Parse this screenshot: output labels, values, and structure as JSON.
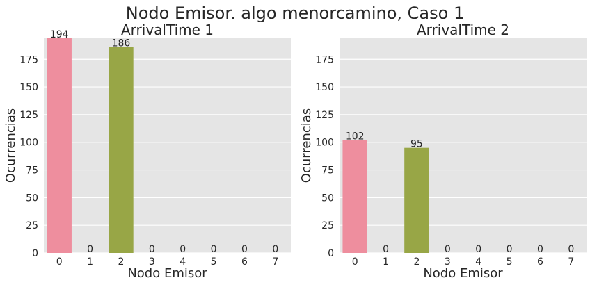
{
  "figure": {
    "suptitle": "Nodo Emisor. algo menorcamino, Caso 1"
  },
  "colors": {
    "panel_background": "#e5e5e5",
    "grid": "#ffffff",
    "palette": [
      "#ee8e9e",
      "#e9a37e",
      "#98a646",
      "#5bb06f",
      "#4fb2a9",
      "#59a9d6",
      "#a99de8",
      "#e887cf"
    ]
  },
  "chart_data": [
    {
      "type": "bar",
      "title": "ArrivalTime 1",
      "xlabel": "Nodo Emisor",
      "ylabel": "Ocurrencias",
      "categories": [
        "0",
        "1",
        "2",
        "3",
        "4",
        "5",
        "6",
        "7"
      ],
      "values": [
        194,
        0,
        186,
        0,
        0,
        0,
        0,
        0
      ],
      "ylim": [
        0,
        194
      ],
      "yticks": [
        0,
        25,
        50,
        75,
        100,
        125,
        150,
        175
      ],
      "grid": true,
      "data_labels": true
    },
    {
      "type": "bar",
      "title": "ArrivalTime 2",
      "xlabel": "Nodo Emisor",
      "ylabel": "Ocurrencias",
      "categories": [
        "0",
        "1",
        "2",
        "3",
        "4",
        "5",
        "6",
        "7"
      ],
      "values": [
        102,
        0,
        95,
        0,
        0,
        0,
        0,
        0
      ],
      "ylim": [
        0,
        194
      ],
      "yticks": [
        0,
        25,
        50,
        75,
        100,
        125,
        150,
        175
      ],
      "grid": true,
      "data_labels": true
    }
  ]
}
